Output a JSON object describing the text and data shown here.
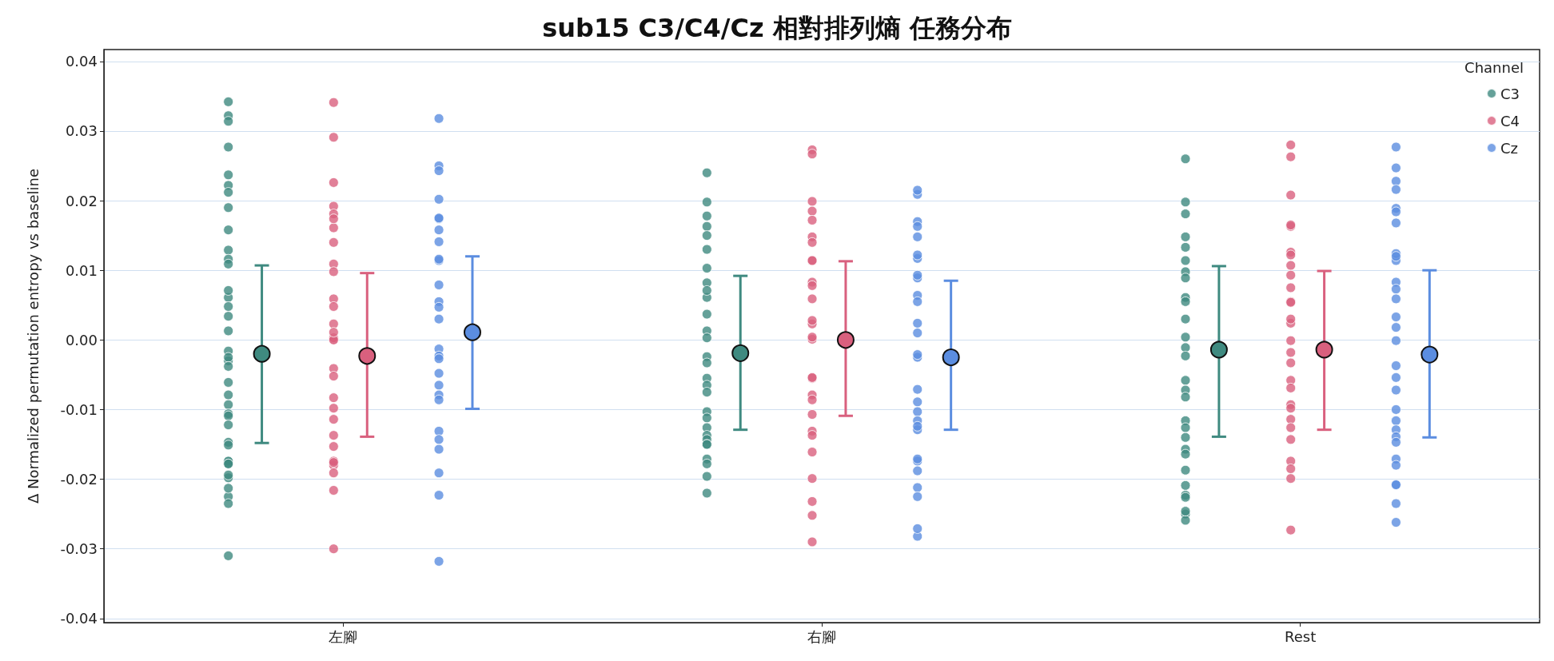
{
  "chart_data": {
    "type": "scatter",
    "title": "sub15 C3/C4/Cz 相對排列熵 任務分布",
    "ylabel": "Δ Normalized permutation entropy vs baseline",
    "legend_title": "Channel",
    "legend": "top right",
    "grid": "y",
    "marker": "circle",
    "categories": [
      "左腳",
      "右腳",
      "Rest"
    ],
    "ylim": [
      -0.0406,
      0.0417
    ],
    "yticks": [
      -0.04,
      -0.03,
      -0.02,
      -0.01,
      {
        "value": 0,
        "label": "0.00"
      },
      0.01,
      0.02,
      0.03,
      0.04
    ],
    "series": [
      {
        "name": "C3",
        "color": "#3f8a80",
        "x": [
          "左腳",
          "左腳",
          "左腳",
          "左腳",
          "左腳",
          "左腳",
          "左腳",
          "左腳",
          "左腳",
          "左腳",
          "左腳",
          "左腳",
          "左腳",
          "左腳",
          "左腳",
          "左腳",
          "左腳",
          "左腳",
          "左腳",
          "左腳",
          "左腳",
          "左腳",
          "左腳",
          "左腳",
          "左腳",
          "左腳",
          "左腳",
          "左腳",
          "左腳",
          "左腳",
          "左腳",
          "左腳",
          "左腳",
          "左腳",
          "左腳",
          "左腳",
          "左腳",
          "左腳",
          "左腳",
          "右腳",
          "右腳",
          "右腳",
          "右腳",
          "右腳",
          "右腳",
          "右腳",
          "右腳",
          "右腳",
          "右腳",
          "右腳",
          "右腳",
          "右腳",
          "右腳",
          "右腳",
          "右腳",
          "右腳",
          "右腳",
          "右腳",
          "右腳",
          "右腳",
          "右腳",
          "右腳",
          "右腳",
          "右腳",
          "右腳",
          "右腳",
          "右腳",
          "右腳",
          "Rest",
          "Rest",
          "Rest",
          "Rest",
          "Rest",
          "Rest",
          "Rest",
          "Rest",
          "Rest",
          "Rest",
          "Rest",
          "Rest",
          "Rest",
          "Rest",
          "Rest",
          "Rest",
          "Rest",
          "Rest",
          "Rest",
          "Rest",
          "Rest",
          "Rest",
          "Rest",
          "Rest",
          "Rest",
          "Rest",
          "Rest",
          "Rest",
          "Rest"
        ],
        "values": [
          0.0342,
          0.0322,
          0.0314,
          0.0277,
          0.0237,
          0.0222,
          0.0212,
          0.019,
          0.0158,
          0.0129,
          0.0116,
          0.0109,
          0.0061,
          0.0071,
          0.0048,
          0.0034,
          0.0013,
          -0.003,
          -0.0016,
          -0.0025,
          -0.0038,
          -0.0061,
          -0.0079,
          -0.0093,
          -0.0106,
          -0.0109,
          -0.0122,
          -0.0147,
          -0.0151,
          -0.0175,
          -0.0174,
          -0.0178,
          -0.0178,
          -0.0198,
          -0.0194,
          -0.0225,
          -0.0213,
          -0.0235,
          -0.031,
          0.024,
          0.0198,
          0.0178,
          0.0163,
          0.015,
          0.013,
          0.0103,
          0.0082,
          0.0061,
          0.0071,
          0.0037,
          0.0013,
          0.0003,
          -0.0024,
          -0.0033,
          -0.0055,
          -0.0065,
          -0.0075,
          -0.0103,
          -0.0112,
          -0.0126,
          -0.0137,
          -0.0143,
          -0.015,
          -0.015,
          -0.0171,
          -0.0178,
          -0.0196,
          -0.022,
          0.026,
          0.0181,
          0.0198,
          0.0148,
          0.0133,
          0.0114,
          0.0098,
          0.0089,
          0.0061,
          0.0055,
          0.003,
          0.0004,
          -0.0011,
          -0.0023,
          -0.0058,
          -0.0072,
          -0.0082,
          -0.0116,
          -0.0126,
          -0.014,
          -0.0157,
          -0.0164,
          -0.0209,
          -0.0187,
          -0.0223,
          -0.0226,
          -0.025,
          -0.0259,
          -0.0246
        ]
      },
      {
        "name": "C4",
        "color": "#d9607e",
        "x": [
          "左腳",
          "左腳",
          "左腳",
          "左腳",
          "左腳",
          "左腳",
          "左腳",
          "左腳",
          "左腳",
          "左腳",
          "左腳",
          "左腳",
          "左腳",
          "左腳",
          "左腳",
          "左腳",
          "左腳",
          "左腳",
          "左腳",
          "左腳",
          "左腳",
          "左腳",
          "左腳",
          "左腳",
          "左腳",
          "左腳",
          "左腳",
          "左腳",
          "左腳",
          "左腳",
          "右腳",
          "右腳",
          "右腳",
          "右腳",
          "右腳",
          "右腳",
          "右腳",
          "右腳",
          "右腳",
          "右腳",
          "右腳",
          "右腳",
          "右腳",
          "右腳",
          "右腳",
          "右腳",
          "右腳",
          "右腳",
          "右腳",
          "右腳",
          "右腳",
          "右腳",
          "右腳",
          "右腳",
          "右腳",
          "右腳",
          "右腳",
          "右腳",
          "Rest",
          "Rest",
          "Rest",
          "Rest",
          "Rest",
          "Rest",
          "Rest",
          "Rest",
          "Rest",
          "Rest",
          "Rest",
          "Rest",
          "Rest",
          "Rest",
          "Rest",
          "Rest",
          "Rest",
          "Rest",
          "Rest",
          "Rest",
          "Rest",
          "Rest",
          "Rest",
          "Rest",
          "Rest",
          "Rest",
          "Rest",
          "Rest"
        ],
        "values": [
          0.0341,
          0.0291,
          0.0226,
          0.0192,
          0.0161,
          0.0181,
          0.0174,
          0.014,
          0.0109,
          0.0098,
          0.0059,
          0.0048,
          0.0023,
          0.0001,
          0.0003,
          0,
          0.0011,
          -0.0041,
          -0.0052,
          -0.0083,
          -0.0098,
          -0.0114,
          -0.0137,
          -0.0153,
          -0.018,
          -0.0174,
          -0.0176,
          -0.0191,
          -0.0216,
          -0.03,
          0.0273,
          0.0267,
          0.0199,
          0.0185,
          0.0172,
          0.0148,
          0.014,
          0.0114,
          0.0114,
          0.0083,
          0.0078,
          0.0059,
          0.0023,
          0.0028,
          0.0001,
          0.0004,
          -0.0055,
          -0.0054,
          -0.0079,
          -0.0086,
          -0.0107,
          -0.0131,
          -0.0137,
          -0.0161,
          -0.0199,
          -0.0232,
          -0.0252,
          -0.029,
          0.028,
          0.0263,
          0.0208,
          0.0163,
          0.0165,
          0.0126,
          0.0122,
          0.0107,
          0.0093,
          0.0075,
          0.0055,
          0.0054,
          0.0024,
          0.003,
          -0.0001,
          -0.0018,
          -0.0033,
          -0.0058,
          -0.0069,
          -0.0093,
          -0.0098,
          -0.0114,
          -0.0126,
          -0.0143,
          -0.0174,
          -0.0185,
          -0.0199,
          -0.0273
        ]
      },
      {
        "name": "Cz",
        "color": "#5b8de0",
        "x": [
          "左腳",
          "左腳",
          "左腳",
          "左腳",
          "左腳",
          "左腳",
          "左腳",
          "左腳",
          "左腳",
          "左腳",
          "左腳",
          "左腳",
          "左腳",
          "左腳",
          "左腳",
          "左腳",
          "左腳",
          "左腳",
          "左腳",
          "左腳",
          "左腳",
          "左腳",
          "左腳",
          "左腳",
          "左腳",
          "左腳",
          "左腳",
          "右腳",
          "右腳",
          "右腳",
          "右腳",
          "右腳",
          "右腳",
          "右腳",
          "右腳",
          "右腳",
          "右腳",
          "右腳",
          "右腳",
          "右腳",
          "右腳",
          "右腳",
          "右腳",
          "右腳",
          "右腳",
          "右腳",
          "右腳",
          "右腳",
          "右腳",
          "右腳",
          "右腳",
          "右腳",
          "右腳",
          "右腳",
          "右腳",
          "Rest",
          "Rest",
          "Rest",
          "Rest",
          "Rest",
          "Rest",
          "Rest",
          "Rest",
          "Rest",
          "Rest",
          "Rest",
          "Rest",
          "Rest",
          "Rest",
          "Rest",
          "Rest",
          "Rest",
          "Rest",
          "Rest",
          "Rest",
          "Rest",
          "Rest",
          "Rest",
          "Rest",
          "Rest",
          "Rest",
          "Rest",
          "Rest",
          "Rest",
          "Rest"
        ],
        "values": [
          0.0318,
          0.025,
          0.0243,
          0.0202,
          0.0174,
          0.0175,
          0.0158,
          0.0141,
          0.0114,
          0.0116,
          0.0079,
          0.0055,
          0.003,
          0.0047,
          -0.0013,
          -0.0023,
          -0.0027,
          -0.0048,
          -0.0065,
          -0.0079,
          -0.0086,
          -0.0131,
          -0.0157,
          -0.0143,
          -0.0191,
          -0.0223,
          -0.0318,
          0.0209,
          0.0215,
          0.017,
          0.0163,
          0.0148,
          0.0117,
          0.0089,
          0.0093,
          0.0122,
          0.0064,
          0.0055,
          0.001,
          0.0024,
          -0.0025,
          -0.0021,
          -0.0071,
          -0.0089,
          -0.0103,
          -0.0116,
          -0.0129,
          -0.0124,
          -0.0174,
          -0.0171,
          -0.0188,
          -0.0212,
          -0.0225,
          -0.0282,
          -0.0271,
          0.0277,
          0.0247,
          0.0228,
          0.0216,
          0.0189,
          0.0184,
          0.0168,
          0.0114,
          0.0124,
          0.012,
          0.0083,
          0.0073,
          0.0059,
          0.0033,
          0.0018,
          -0.0001,
          -0.0037,
          -0.0054,
          -0.0072,
          -0.01,
          -0.0116,
          -0.0129,
          -0.0139,
          -0.0147,
          -0.0171,
          -0.018,
          -0.0208,
          -0.0208,
          -0.0235,
          -0.0262
        ]
      },
      {
        "color": "#3f8a80",
        "x": [
          "左腳",
          "右腳",
          "Rest"
        ],
        "values": [
          -0.002,
          -0.0019,
          -0.0014
        ],
        "errors": [
          [
            -0.0148,
            0.0107
          ],
          [
            -0.0129,
            0.0092
          ],
          [
            -0.0139,
            0.0106
          ]
        ]
      },
      {
        "color": "#d9607e",
        "x": [
          "左腳",
          "右腳",
          "Rest"
        ],
        "values": [
          -0.0023,
          0,
          -0.0014
        ],
        "errors": [
          [
            -0.0139,
            0.0096
          ],
          [
            -0.0109,
            0.0113
          ],
          [
            -0.0129,
            0.0099
          ]
        ]
      },
      {
        "color": "#5b8de0",
        "x": [
          "左腳",
          "右腳",
          "Rest"
        ],
        "values": [
          0.0011,
          -0.0025,
          -0.0021
        ],
        "errors": [
          [
            -0.0099,
            0.012
          ],
          [
            -0.0129,
            0.0085
          ],
          [
            -0.014,
            0.01
          ]
        ]
      }
    ]
  }
}
